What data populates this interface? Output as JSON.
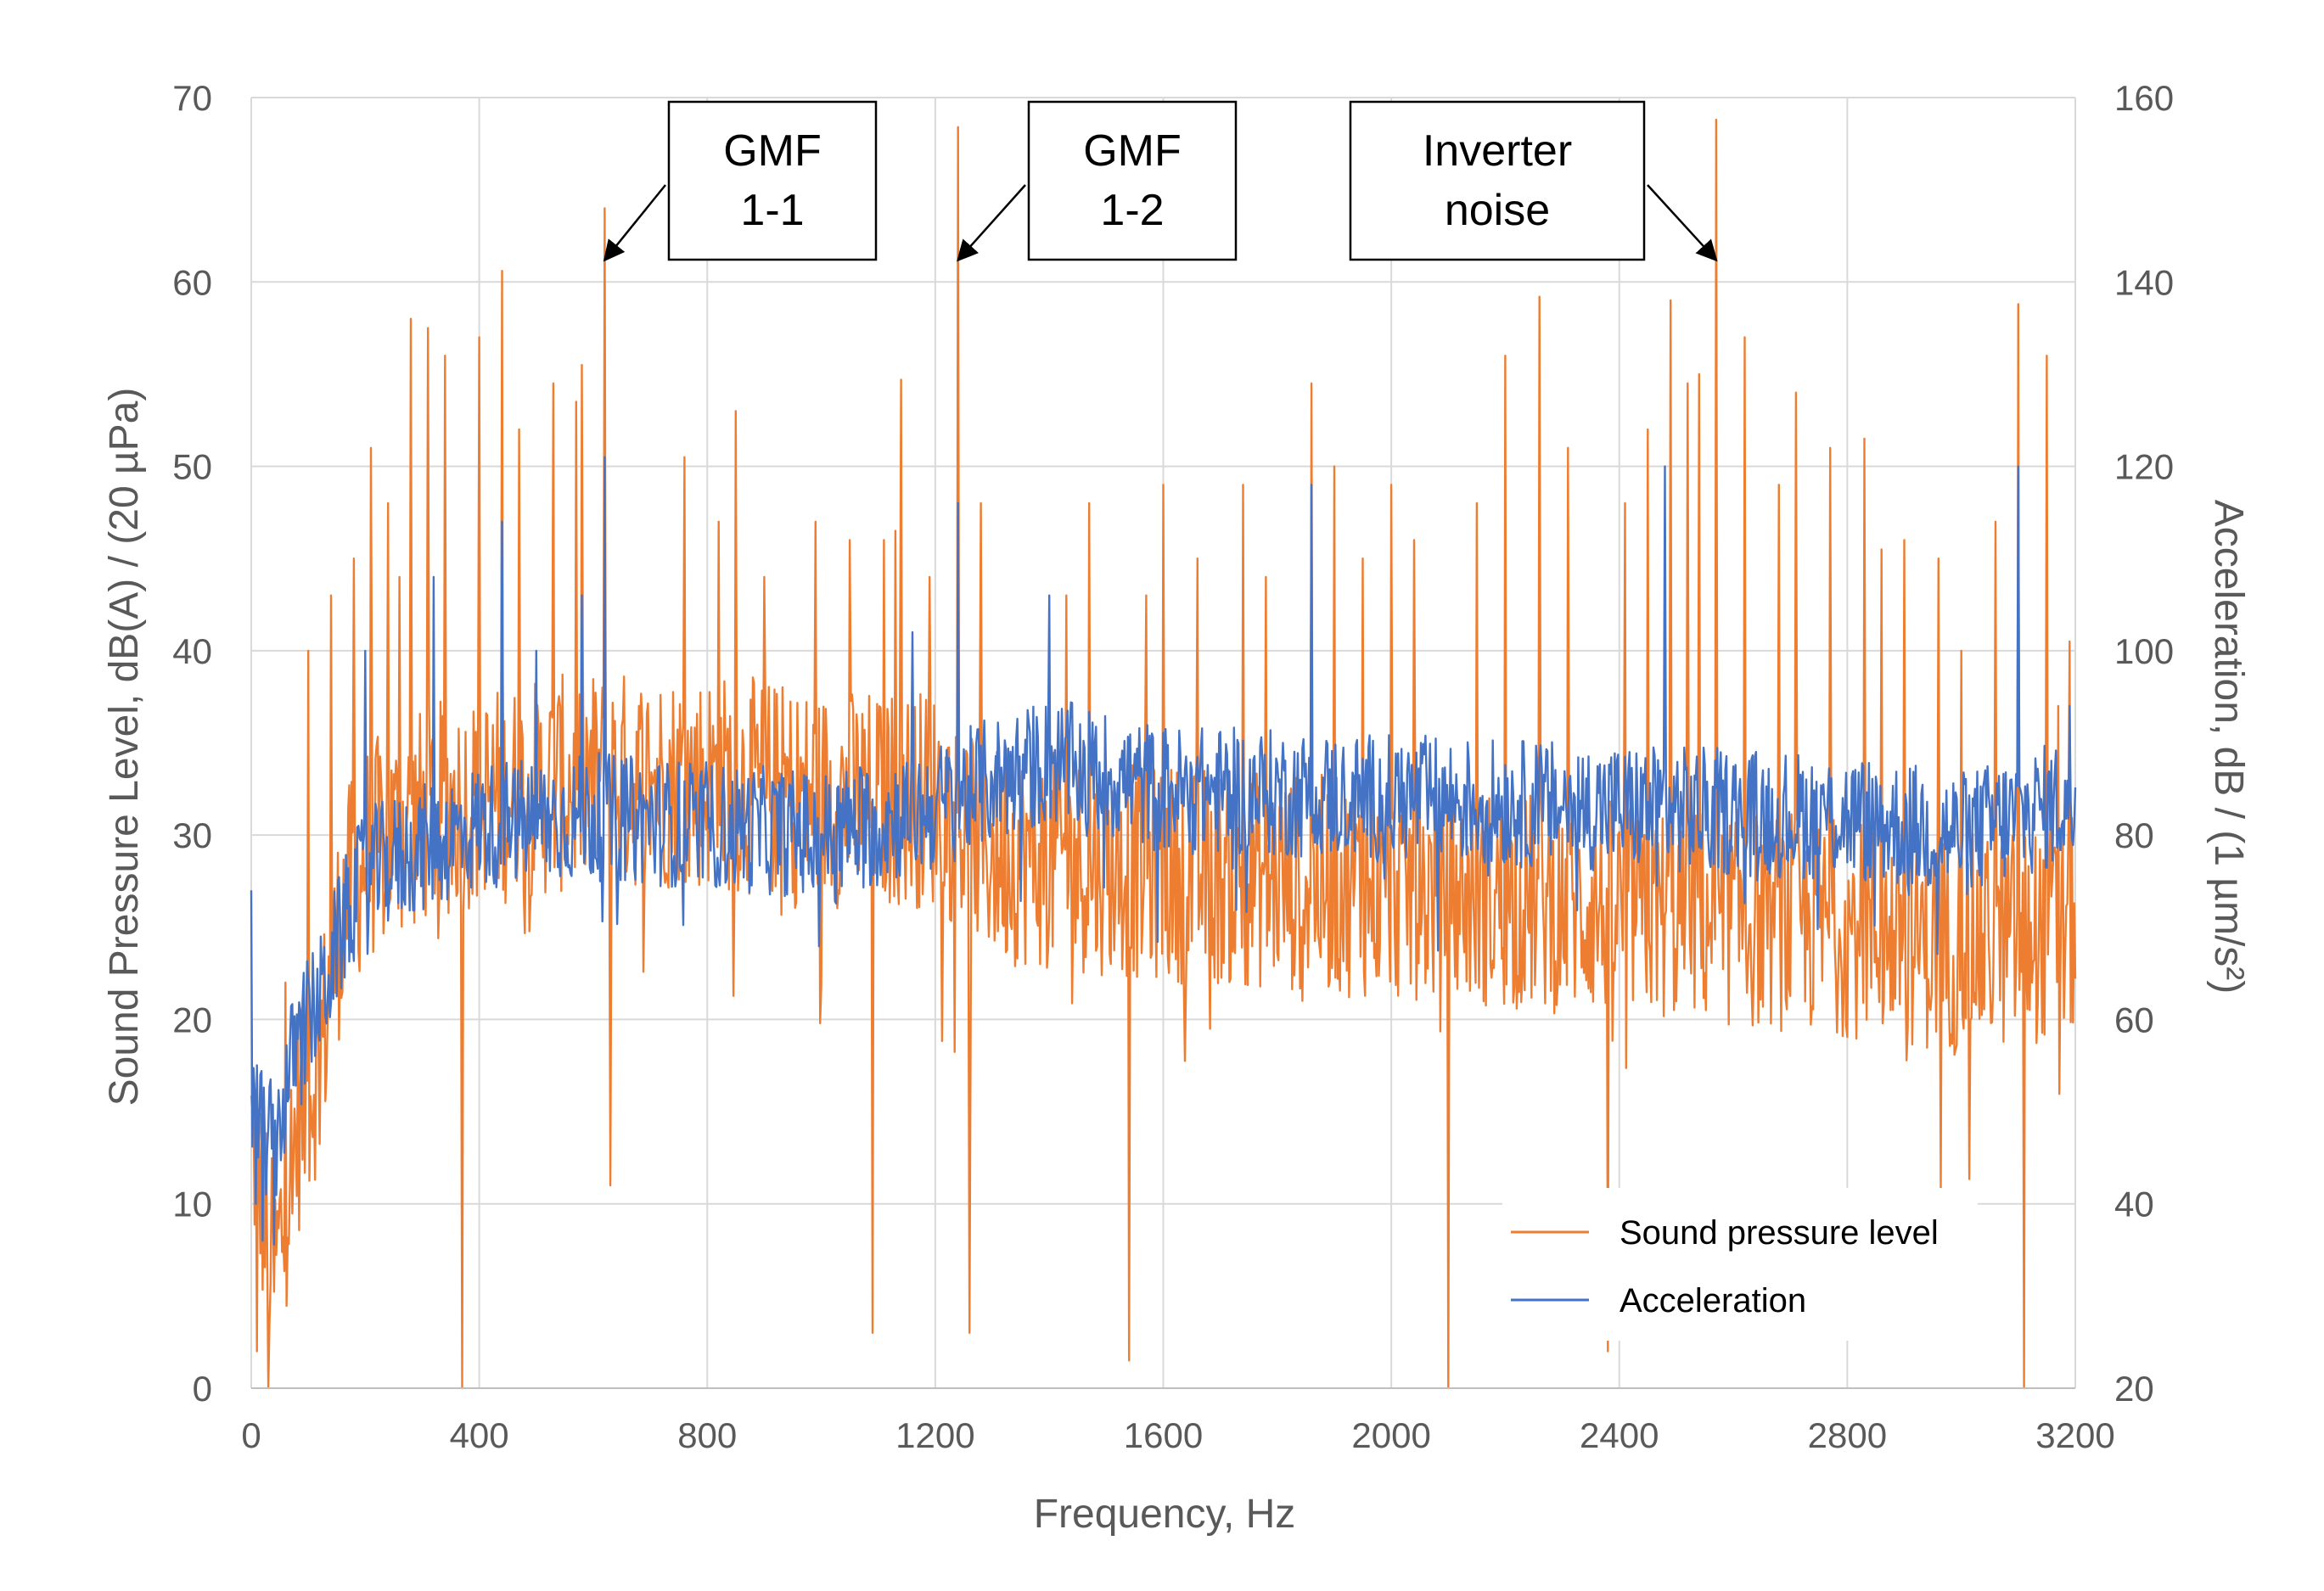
{
  "chart_data": {
    "type": "line",
    "title": "",
    "xlabel": "Frequency, Hz",
    "ylabel_left": "Sound Pressure Level, dB(A) / (20 µPa)",
    "ylabel_right": "Acceleration, dB / (1 µm/s²)",
    "xlim": [
      0,
      3200
    ],
    "ylim_left": [
      0,
      70
    ],
    "ylim_right": [
      20,
      160
    ],
    "x_ticks": [
      0,
      400,
      800,
      1200,
      1600,
      2000,
      2400,
      2800,
      3200
    ],
    "y_left_ticks": [
      0,
      10,
      20,
      30,
      40,
      50,
      60,
      70
    ],
    "y_right_ticks": [
      20,
      40,
      60,
      80,
      100,
      120,
      140,
      160
    ],
    "grid": true,
    "legend_position": "bottom-right",
    "colors": {
      "spl": "#ED7D31",
      "acc": "#4472C4",
      "grid": "#D9D9D9",
      "text": "#595959"
    },
    "annotations": [
      {
        "line1": "GMF",
        "line2": "1-1",
        "target_x": 620,
        "target_y": 61
      },
      {
        "line1": "GMF",
        "line2": "1-2",
        "target_x": 1240,
        "target_y": 61
      },
      {
        "line1": "Inverter",
        "line2": "noise",
        "target_x": 2570,
        "target_y": 61
      }
    ],
    "series": [
      {
        "name": "Sound pressure level",
        "axis": "left",
        "color": "#ED7D31",
        "baseline_anchors": [
          [
            0,
            14
          ],
          [
            40,
            6
          ],
          [
            80,
            14
          ],
          [
            120,
            18
          ],
          [
            160,
            26
          ],
          [
            200,
            29
          ],
          [
            300,
            31
          ],
          [
            400,
            32
          ],
          [
            600,
            33
          ],
          [
            800,
            33
          ],
          [
            1000,
            32
          ],
          [
            1200,
            32
          ],
          [
            1300,
            29
          ],
          [
            1600,
            28
          ],
          [
            2000,
            27
          ],
          [
            2400,
            26
          ],
          [
            2800,
            25
          ],
          [
            3000,
            24
          ],
          [
            3200,
            25
          ]
        ],
        "noise_amplitude": 6,
        "peaks": [
          [
            10,
            2
          ],
          [
            30,
            0
          ],
          [
            60,
            22
          ],
          [
            100,
            40
          ],
          [
            140,
            43
          ],
          [
            180,
            45
          ],
          [
            210,
            51
          ],
          [
            240,
            48
          ],
          [
            260,
            44
          ],
          [
            280,
            58
          ],
          [
            310,
            57.5
          ],
          [
            340,
            56
          ],
          [
            370,
            0
          ],
          [
            400,
            57
          ],
          [
            440,
            60.6
          ],
          [
            470,
            52
          ],
          [
            530,
            54.5
          ],
          [
            570,
            53.5
          ],
          [
            580,
            55.5
          ],
          [
            620,
            64
          ],
          [
            630,
            11
          ],
          [
            680,
            37
          ],
          [
            760,
            50.5
          ],
          [
            820,
            47
          ],
          [
            850,
            53
          ],
          [
            900,
            44
          ],
          [
            990,
            47
          ],
          [
            1050,
            46
          ],
          [
            1090,
            3
          ],
          [
            1110,
            46
          ],
          [
            1130,
            46.5
          ],
          [
            1140,
            54.7
          ],
          [
            1190,
            44
          ],
          [
            1240,
            68.4
          ],
          [
            1260,
            3
          ],
          [
            1280,
            48
          ],
          [
            1430,
            43
          ],
          [
            1470,
            48
          ],
          [
            1540,
            1.5
          ],
          [
            1570,
            43
          ],
          [
            1600,
            49
          ],
          [
            1660,
            45
          ],
          [
            1740,
            49
          ],
          [
            1780,
            44
          ],
          [
            1860,
            54.5
          ],
          [
            1900,
            50
          ],
          [
            1950,
            45
          ],
          [
            2000,
            49
          ],
          [
            2040,
            46
          ],
          [
            2100,
            0
          ],
          [
            2150,
            48
          ],
          [
            2200,
            56
          ],
          [
            2260,
            59.2
          ],
          [
            2310,
            51
          ],
          [
            2380,
            2
          ],
          [
            2410,
            48
          ],
          [
            2450,
            52
          ],
          [
            2490,
            59
          ],
          [
            2520,
            54.5
          ],
          [
            2540,
            55
          ],
          [
            2570,
            68.8
          ],
          [
            2620,
            57
          ],
          [
            2680,
            49
          ],
          [
            2710,
            54
          ],
          [
            2770,
            51
          ],
          [
            2830,
            51.5
          ],
          [
            2860,
            45.5
          ],
          [
            2900,
            46
          ],
          [
            2960,
            45
          ],
          [
            3000,
            40
          ],
          [
            3060,
            47
          ],
          [
            3100,
            58.8
          ],
          [
            3110,
            0
          ],
          [
            3150,
            56
          ],
          [
            3170,
            37
          ],
          [
            3190,
            40.5
          ]
        ]
      },
      {
        "name": "Acceleration",
        "axis": "right",
        "color": "#4472C4",
        "baseline_anchors": [
          [
            0,
            50
          ],
          [
            40,
            46
          ],
          [
            80,
            58
          ],
          [
            120,
            62
          ],
          [
            160,
            70
          ],
          [
            200,
            76
          ],
          [
            400,
            81
          ],
          [
            600,
            82
          ],
          [
            800,
            81
          ],
          [
            1000,
            80
          ],
          [
            1200,
            83
          ],
          [
            1300,
            86
          ],
          [
            1400,
            88
          ],
          [
            1600,
            85
          ],
          [
            2000,
            84
          ],
          [
            2400,
            83
          ],
          [
            2800,
            82
          ],
          [
            3000,
            80
          ],
          [
            3200,
            84
          ]
        ],
        "noise_amplitude": 7,
        "peaks": [
          [
            0,
            74
          ],
          [
            20,
            36
          ],
          [
            200,
            100
          ],
          [
            320,
            108
          ],
          [
            440,
            114
          ],
          [
            500,
            100
          ],
          [
            580,
            106
          ],
          [
            620,
            121
          ],
          [
            1160,
            102
          ],
          [
            1240,
            116
          ],
          [
            1400,
            106
          ],
          [
            1860,
            118
          ],
          [
            2480,
            120
          ],
          [
            3100,
            120
          ],
          [
            3190,
            94
          ]
        ]
      }
    ]
  }
}
